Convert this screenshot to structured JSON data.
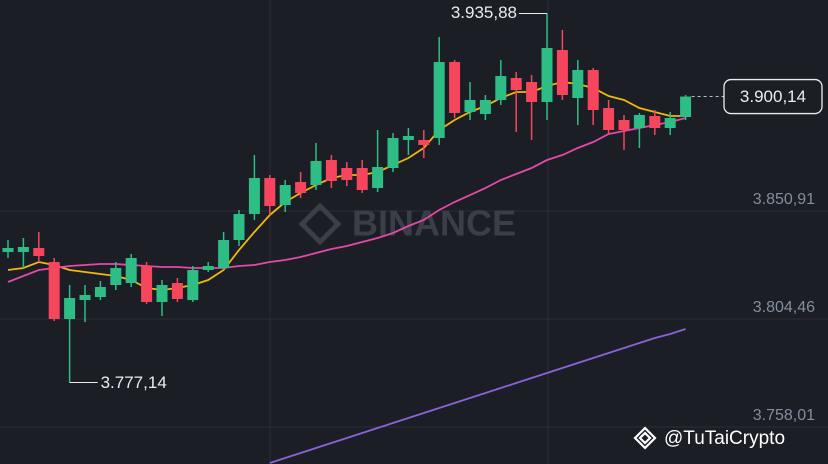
{
  "chart_data": {
    "type": "candlestick",
    "ylim": [
      3742.1,
      3941.66
    ],
    "yticks": [
      {
        "value": 3758.01,
        "label": "3.758,01"
      },
      {
        "value": 3804.46,
        "label": "3.804,46"
      },
      {
        "value": 3850.91,
        "label": "3.850,91"
      }
    ],
    "grid": true,
    "up_color": "#2ebd85",
    "down_color": "#f6465d",
    "open": [
      3833.27,
      3833.27,
      3835.0,
      3828.97,
      3804.46,
      3812.63,
      3813.92,
      3819.08,
      3819.94,
      3827.25,
      3811.77,
      3819.94,
      3812.63,
      3825.53,
      3826.39,
      3838.44,
      3849.62,
      3865.1,
      3853.49,
      3863.38,
      3862.09,
      3872.84,
      3869.4,
      3869.4,
      3860.8,
      3869.4,
      3881.45,
      3881.45,
      3882.31,
      3914.99,
      3893.49,
      3892.63,
      3898.65,
      3908.11,
      3906.39,
      3897.79,
      3920.15,
      3899.51,
      3911.55,
      3895.21,
      3890.05,
      3886.61,
      3891.77,
      3886.61,
      3891.34
    ],
    "high": [
      3838.44,
      3839.3,
      3841.88,
      3830.69,
      3819.08,
      3819.08,
      3820.8,
      3828.97,
      3832.41,
      3828.97,
      3821.23,
      3822.09,
      3827.25,
      3828.97,
      3841.88,
      3851.34,
      3874.99,
      3866.39,
      3864.24,
      3867.68,
      3880.16,
      3874.99,
      3871.98,
      3872.84,
      3885.75,
      3884.46,
      3886.61,
      3885.75,
      3925.75,
      3915.85,
      3906.39,
      3900.8,
      3915.85,
      3910.69,
      3909.4,
      3935.88,
      3928.76,
      3915.85,
      3912.41,
      3898.65,
      3892.2,
      3893.06,
      3894.35,
      3893.49,
      3900.8
    ],
    "low": [
      3830.69,
      3826.39,
      3828.97,
      3803.6,
      3777.14,
      3803.17,
      3812.63,
      3816.93,
      3818.22,
      3810.91,
      3805.75,
      3811.77,
      3811.77,
      3824.67,
      3825.53,
      3835.86,
      3847.04,
      3849.19,
      3850.48,
      3856.5,
      3859.94,
      3860.8,
      3861.66,
      3858.65,
      3859.08,
      3867.68,
      3874.99,
      3873.7,
      3879.3,
      3890.91,
      3890.05,
      3890.05,
      3896.5,
      3884.89,
      3881.45,
      3890.05,
      3898.65,
      3887.9,
      3887.9,
      3883.6,
      3877.14,
      3878.01,
      3883.6,
      3883.6,
      3890.05
    ],
    "close": [
      3835.0,
      3835.43,
      3831.55,
      3804.46,
      3813.49,
      3814.78,
      3818.22,
      3826.39,
      3830.69,
      3811.77,
      3819.08,
      3813.06,
      3825.53,
      3827.25,
      3838.44,
      3849.62,
      3865.1,
      3853.06,
      3862.09,
      3858.65,
      3872.41,
      3863.81,
      3864.24,
      3859.94,
      3869.83,
      3882.31,
      3883.17,
      3879.3,
      3914.99,
      3893.06,
      3898.65,
      3898.65,
      3908.97,
      3902.95,
      3897.79,
      3921.02,
      3900.8,
      3911.55,
      3894.35,
      3885.75,
      3885.75,
      3892.2,
      3886.61,
      3890.91,
      3900.14
    ],
    "lines": [
      {
        "color": "#f0b90b",
        "values": [
          3825.53,
          3826.39,
          3828.97,
          3827.68,
          3825.53,
          3824.67,
          3823.81,
          3822.95,
          3821.23,
          3817.79,
          3816.93,
          3817.79,
          3819.08,
          3821.23,
          3825.53,
          3834.13,
          3841.88,
          3849.19,
          3854.78,
          3858.65,
          3862.09,
          3865.1,
          3866.39,
          3866.39,
          3867.68,
          3870.69,
          3873.7,
          3878.01,
          3885.75,
          3890.05,
          3893.49,
          3896.07,
          3899.51,
          3902.09,
          3902.09,
          3904.67,
          3906.39,
          3905.53,
          3903.81,
          3900.37,
          3898.65,
          3895.21,
          3893.49,
          3891.77,
          3891.77
        ]
      },
      {
        "color": "#e449a8",
        "values": [
          3820.37,
          3822.95,
          3825.53,
          3826.39,
          3827.25,
          3827.68,
          3828.11,
          3828.11,
          3827.68,
          3827.25,
          3826.82,
          3826.82,
          3826.39,
          3826.39,
          3826.39,
          3827.25,
          3827.68,
          3828.97,
          3829.83,
          3831.12,
          3832.84,
          3834.57,
          3835.86,
          3837.58,
          3839.3,
          3841.45,
          3844.46,
          3847.04,
          3851.34,
          3854.78,
          3857.79,
          3860.8,
          3864.24,
          3866.82,
          3869.4,
          3872.84,
          3874.99,
          3878.01,
          3880.59,
          3884.03,
          3885.32,
          3886.61,
          3887.9,
          3889.19,
          3890.91
        ]
      },
      {
        "color": "#8b62d8",
        "values": [
          null,
          null,
          null,
          null,
          null,
          null,
          null,
          null,
          null,
          null,
          null,
          null,
          null,
          null,
          null,
          null,
          null,
          3742.52,
          3744.67,
          3746.82,
          3748.98,
          3751.13,
          3753.28,
          3755.43,
          3757.58,
          3759.73,
          3761.88,
          3764.03,
          3766.18,
          3768.33,
          3770.48,
          3772.63,
          3774.78,
          3776.93,
          3779.08,
          3781.23,
          3783.38,
          3785.53,
          3787.68,
          3789.83,
          3791.99,
          3794.14,
          3796.29,
          3798.01,
          3800.16
        ]
      }
    ],
    "high_annotation": {
      "value": 3935.88,
      "label": "3.935,88"
    },
    "low_annotation": {
      "value": 3777.14,
      "label": "3.777,14"
    },
    "current_price": {
      "value": 3900.14,
      "label": "3.900,14"
    },
    "watermark": "BINANCE",
    "credit": "@TuTaiCrypto"
  }
}
